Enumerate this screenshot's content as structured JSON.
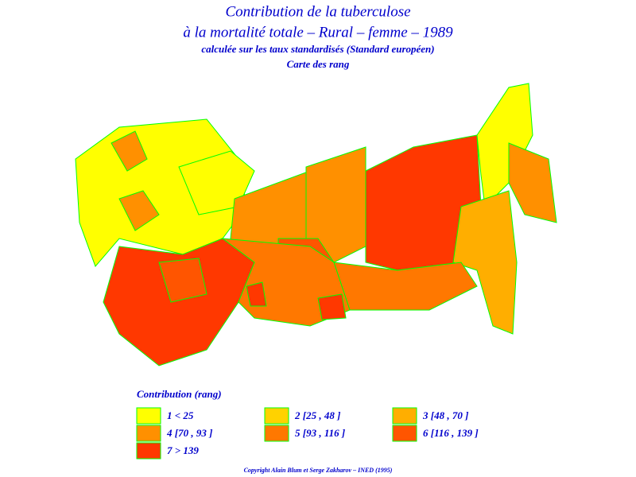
{
  "header": {
    "lines": [
      "Contribution de la tuberculose",
      "à la mortalité totale – Rural – femme – 1989",
      "calculée sur les taux standardisés (Standard européen)",
      "Carte des rang"
    ]
  },
  "legend": {
    "title": "Contribution (rang)",
    "items": [
      {
        "label": "1 < 25",
        "color": "#ffff00"
      },
      {
        "label": "2 [25 , 48 ]",
        "color": "#ffd200"
      },
      {
        "label": "3 [48 , 70 ]",
        "color": "#ffae00"
      },
      {
        "label": "4 [70 , 93 ]",
        "color": "#ff9000"
      },
      {
        "label": "5 [93 , 116 ]",
        "color": "#ff7800"
      },
      {
        "label": "6 [116 , 139 ]",
        "color": "#ff5500"
      },
      {
        "label": "7 > 139",
        "color": "#ff3800"
      }
    ]
  },
  "footer": {
    "copyright": "Copyright Alain Blum et Serge Zakharov – INED (1995)"
  }
}
